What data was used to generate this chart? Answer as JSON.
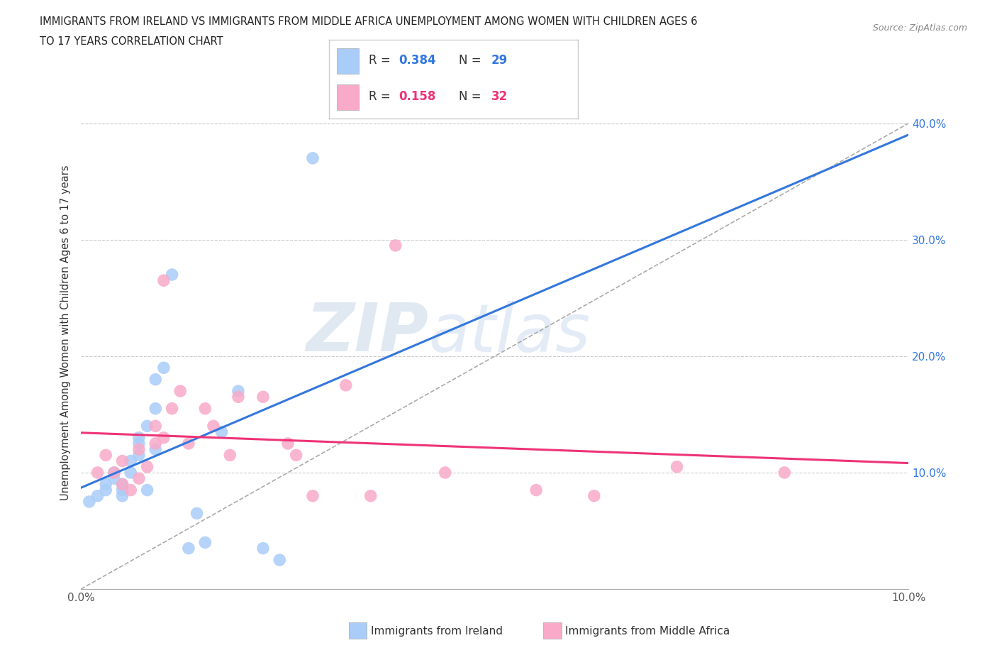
{
  "title_line1": "IMMIGRANTS FROM IRELAND VS IMMIGRANTS FROM MIDDLE AFRICA UNEMPLOYMENT AMONG WOMEN WITH CHILDREN AGES 6",
  "title_line2": "TO 17 YEARS CORRELATION CHART",
  "source": "Source: ZipAtlas.com",
  "ylabel": "Unemployment Among Women with Children Ages 6 to 17 years",
  "xlim": [
    0.0,
    0.1
  ],
  "ylim": [
    0.0,
    0.44
  ],
  "xticks": [
    0.0,
    0.02,
    0.04,
    0.06,
    0.08,
    0.1
  ],
  "yticks": [
    0.1,
    0.2,
    0.3,
    0.4
  ],
  "xticklabels": [
    "0.0%",
    "",
    "",
    "",
    "",
    "10.0%"
  ],
  "yticklabels": [
    "10.0%",
    "20.0%",
    "30.0%",
    "40.0%"
  ],
  "ireland_R": 0.384,
  "ireland_N": 29,
  "middle_africa_R": 0.158,
  "middle_africa_N": 32,
  "ireland_color": "#aaccf8",
  "middle_africa_color": "#f8aac8",
  "ireland_line_color": "#3377dd",
  "middle_africa_line_color": "#ee3377",
  "ytick_color": "#3377dd",
  "xtick_color": "#555555",
  "grid_color": "#cccccc",
  "watermark_zip": "ZIP",
  "watermark_atlas": "atlas",
  "ireland_x": [
    0.001,
    0.002,
    0.003,
    0.003,
    0.004,
    0.004,
    0.005,
    0.005,
    0.005,
    0.006,
    0.006,
    0.007,
    0.007,
    0.007,
    0.008,
    0.008,
    0.009,
    0.009,
    0.009,
    0.01,
    0.011,
    0.013,
    0.014,
    0.015,
    0.017,
    0.019,
    0.022,
    0.024,
    0.028
  ],
  "ireland_y": [
    0.075,
    0.08,
    0.085,
    0.09,
    0.095,
    0.1,
    0.08,
    0.085,
    0.09,
    0.1,
    0.11,
    0.115,
    0.125,
    0.13,
    0.085,
    0.14,
    0.12,
    0.155,
    0.18,
    0.19,
    0.27,
    0.035,
    0.065,
    0.04,
    0.135,
    0.17,
    0.035,
    0.025,
    0.37
  ],
  "middle_africa_x": [
    0.002,
    0.003,
    0.004,
    0.005,
    0.005,
    0.006,
    0.007,
    0.007,
    0.008,
    0.009,
    0.009,
    0.01,
    0.01,
    0.011,
    0.012,
    0.013,
    0.015,
    0.016,
    0.018,
    0.019,
    0.022,
    0.025,
    0.026,
    0.028,
    0.032,
    0.035,
    0.038,
    0.044,
    0.055,
    0.062,
    0.072,
    0.085
  ],
  "middle_africa_y": [
    0.1,
    0.115,
    0.1,
    0.09,
    0.11,
    0.085,
    0.095,
    0.12,
    0.105,
    0.14,
    0.125,
    0.265,
    0.13,
    0.155,
    0.17,
    0.125,
    0.155,
    0.14,
    0.115,
    0.165,
    0.165,
    0.125,
    0.115,
    0.08,
    0.175,
    0.08,
    0.295,
    0.1,
    0.085,
    0.08,
    0.105,
    0.1
  ]
}
